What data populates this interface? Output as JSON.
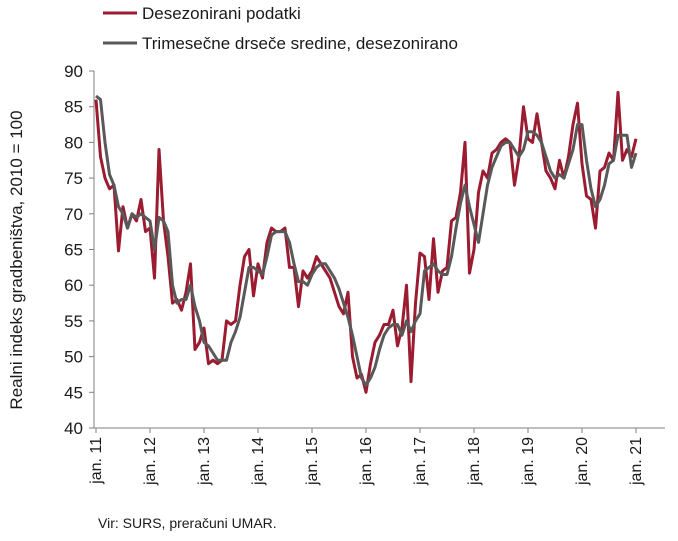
{
  "chart_data": {
    "type": "line",
    "ylabel": "Realni indeks gradbeništva, 2010 = 100",
    "ylim": [
      40,
      90
    ],
    "yticks": [
      40,
      45,
      50,
      55,
      60,
      65,
      70,
      75,
      80,
      85,
      90
    ],
    "x_start": "2011-01",
    "x_tick_labels": [
      "jan. 11",
      "jan. 12",
      "jan. 13",
      "jan. 14",
      "jan. 15",
      "jan. 16",
      "jan. 17",
      "jan. 18",
      "jan. 19",
      "jan. 20",
      "jan. 21"
    ],
    "legend_position": "top-left",
    "grid": false,
    "series": [
      {
        "name": "Desezonirani podatki",
        "color": "#9b1b30",
        "values": [
          86,
          78,
          75,
          73.5,
          74,
          64.8,
          71,
          68,
          70,
          69,
          72,
          67.5,
          68,
          61,
          79,
          69,
          64,
          57.5,
          58,
          56.5,
          59,
          63,
          51,
          52,
          54,
          49,
          49.5,
          49,
          49.5,
          55,
          54.5,
          55,
          60,
          64,
          65,
          58.5,
          63,
          61,
          66,
          68,
          67.5,
          67.5,
          68,
          62.5,
          62.5,
          57,
          62,
          61,
          62,
          64,
          63,
          62,
          61,
          59,
          57,
          56,
          59,
          50,
          47,
          47.5,
          45,
          49,
          52,
          53,
          54.5,
          54.5,
          56.5,
          51.5,
          54,
          60,
          46.5,
          57.5,
          64.5,
          64,
          58,
          66.5,
          59,
          62,
          62.5,
          69,
          69.5,
          73,
          80,
          61.7,
          65,
          73,
          76,
          75,
          78.5,
          79,
          80,
          80.5,
          80,
          74,
          78,
          85,
          80.5,
          80,
          84,
          80,
          76,
          75,
          73.5,
          77.5,
          75,
          78,
          82.5,
          85.5,
          77,
          72.5,
          72,
          68,
          76,
          76.5,
          78.5,
          77.5,
          87,
          77.5,
          79,
          78,
          80.5
        ]
      },
      {
        "name": "Trimesečne drseče sredine, desezonirano",
        "color": "#595959",
        "values": [
          86.5,
          86,
          80,
          75.5,
          74,
          71,
          70,
          68,
          70,
          69.5,
          70,
          69.5,
          69,
          65,
          69.5,
          69,
          67.5,
          60,
          57.5,
          58,
          58,
          60,
          57,
          55,
          52,
          51.5,
          50.5,
          49.5,
          49.5,
          49.5,
          52,
          53.5,
          55.5,
          59,
          62.5,
          62.5,
          62,
          61.5,
          64,
          67,
          67.5,
          67.5,
          67.5,
          66,
          63,
          60.5,
          60.5,
          60,
          61.5,
          62.5,
          63,
          63,
          62,
          61,
          59.5,
          57.5,
          55.5,
          53,
          50,
          47,
          46,
          47,
          48.5,
          51,
          53,
          54,
          54.5,
          54.5,
          53,
          55,
          53.5,
          55,
          56,
          62,
          62.5,
          63,
          62,
          61.5,
          61.5,
          64,
          68,
          71.5,
          74,
          71,
          68.5,
          66,
          70,
          74,
          76.5,
          78,
          79.5,
          80,
          80,
          79,
          78,
          79,
          81.5,
          81.5,
          81,
          80,
          78,
          76,
          75,
          75.5,
          75,
          77,
          79,
          82.5,
          82.5,
          77.5,
          73.5,
          71,
          72,
          74,
          77,
          77.5,
          81,
          81,
          81,
          76.5,
          78.5
        ]
      }
    ],
    "source_text": "Vir: SURS, preračuni UMAR."
  }
}
